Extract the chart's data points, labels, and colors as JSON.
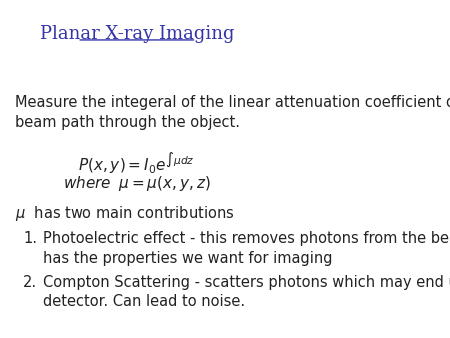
{
  "title": "Planar X-ray Imaging",
  "title_color": "#3333aa",
  "title_fontsize": 13,
  "body_text_color": "#222222",
  "body_fontsize": 10.5,
  "intro_text": "Measure the integeral of the linear attenuation coefficient over the\nbeam path through the object.",
  "item1_text": "Photoelectric effect - this removes photons from the beam and\nhas the properties we want for imaging",
  "item2_text": "Compton Scattering - scatters photons which may end up in the\ndetector. Can lead to noise."
}
